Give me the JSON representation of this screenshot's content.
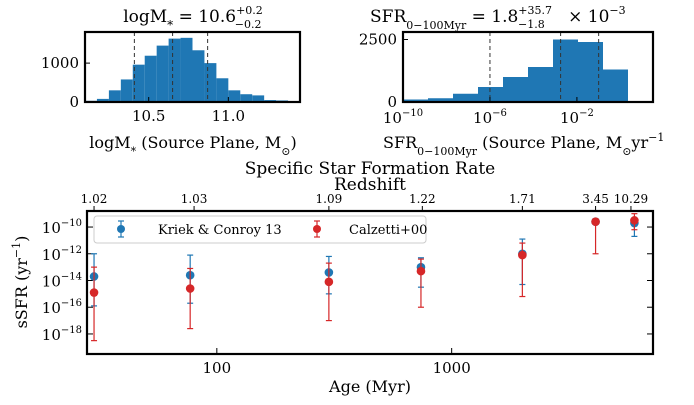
{
  "chart_data": [
    {
      "type": "bar",
      "title": "logM* = 10.6 (+0.2, -0.2)",
      "title_parts": {
        "main": "logM",
        "sub": "*",
        "eq": " = 10.6",
        "sup": "+0.2",
        "sub2": "−0.2"
      },
      "xlabel": "logM* (Source Plane, M⊙)",
      "xlabel_parts": {
        "a": "logM",
        "b": "*",
        "c": " (Source Plane, M",
        "d": "⊙",
        "e": ")"
      },
      "ylabel": "",
      "xlim": [
        10.1,
        11.45
      ],
      "ylim": [
        0,
        1800
      ],
      "xticks": [
        10.5,
        11.0
      ],
      "xtick_labels": [
        "10.5",
        "11.0"
      ],
      "yticks": [
        0,
        1000
      ],
      "ytick_labels": [
        "0",
        "1000"
      ],
      "bin_edges": [
        10.1,
        10.175,
        10.25,
        10.325,
        10.4,
        10.475,
        10.55,
        10.625,
        10.7,
        10.775,
        10.85,
        10.925,
        11.0,
        11.075,
        11.15,
        11.225,
        11.3,
        11.375,
        11.45
      ],
      "values": [
        30,
        80,
        300,
        580,
        960,
        1190,
        1450,
        1630,
        1650,
        1330,
        1000,
        610,
        300,
        200,
        170,
        50,
        40,
        20
      ],
      "percentile_lines": [
        10.41,
        10.65,
        10.87
      ],
      "color": "#1f77b4"
    },
    {
      "type": "bar",
      "title": "SFR0−100Myr = 1.8 (+35.7, −1.8) × 10^−3",
      "title_parts": {
        "main": "SFR",
        "sub": "0−100Myr",
        "eq": " = 1.8",
        "sup": "+35.7",
        "sub2": "−1.8",
        "tail": " × 10",
        "exp": "−3"
      },
      "xlabel": "SFR0−100Myr (Source Plane, M⊙yr−1)",
      "xlabel_parts": {
        "a": "SFR",
        "b": "0−100Myr",
        "c": " (Source Plane, M",
        "d": "⊙",
        "e": "yr",
        "f": "−1"
      },
      "x_scale": "log",
      "xlim_log10": [
        -10,
        1.5
      ],
      "ylim": [
        0,
        2800
      ],
      "xticks_log10": [
        -10,
        -6,
        -2
      ],
      "xtick_labels": [
        {
          "base": "10",
          "exp": "−10"
        },
        {
          "base": "10",
          "exp": "−6"
        },
        {
          "base": "10",
          "exp": "−2"
        }
      ],
      "yticks": [
        0,
        2500
      ],
      "ytick_labels": [
        "0",
        "2500"
      ],
      "bin_edges_log10": [
        -10,
        -8.85,
        -7.7,
        -6.55,
        -5.4,
        -4.25,
        -3.1,
        -1.95,
        -0.8,
        0.35
      ],
      "values": [
        100,
        150,
        330,
        600,
        1000,
        1400,
        2500,
        2400,
        1300
      ],
      "percentile_lines_log10": [
        -6.0,
        -2.75,
        -1.0
      ],
      "color": "#1f77b4"
    },
    {
      "type": "scatter",
      "title": "Specific Star Formation Rate",
      "xlabel": "Age (Myr)",
      "ylabel": "sSFR (yr−1)",
      "ylabel_parts": {
        "a": "sSFR (yr",
        "b": "−1",
        "c": ")"
      },
      "x_scale": "log",
      "y_scale": "log",
      "xlim": [
        28,
        7200
      ],
      "ylim_log10": [
        -19.5,
        -8.8
      ],
      "xticks": [
        100,
        1000
      ],
      "xtick_labels": [
        "100",
        "1000"
      ],
      "yticks_log10": [
        -18,
        -16,
        -14,
        -12,
        -10
      ],
      "ytick_labels": [
        {
          "base": "10",
          "exp": "−18"
        },
        {
          "base": "10",
          "exp": "−16"
        },
        {
          "base": "10",
          "exp": "−14"
        },
        {
          "base": "10",
          "exp": "−12"
        },
        {
          "base": "10",
          "exp": "−10"
        }
      ],
      "top_axis_label": "Redshift",
      "top_ticks": [
        {
          "age": 30,
          "label": "1.02"
        },
        {
          "age": 80,
          "label": "1.03"
        },
        {
          "age": 300,
          "label": "1.09"
        },
        {
          "age": 750,
          "label": "1.22"
        },
        {
          "age": 2000,
          "label": "1.71"
        },
        {
          "age": 4100,
          "label": "3.45"
        },
        {
          "age": 5800,
          "label": "10.29"
        }
      ],
      "legend_position": "upper-left",
      "series": [
        {
          "name": "Kriek & Conroy 13",
          "color": "#1f77b4",
          "points": [
            {
              "x": 30,
              "y_log10": -13.7,
              "lo_log10": -15.9,
              "hi_log10": -12.0
            },
            {
              "x": 77,
              "y_log10": -13.6,
              "lo_log10": -15.7,
              "hi_log10": -12.1
            },
            {
              "x": 300,
              "y_log10": -13.4,
              "lo_log10": -15.0,
              "hi_log10": -12.2
            },
            {
              "x": 740,
              "y_log10": -13.0,
              "lo_log10": -14.5,
              "hi_log10": -12.3
            },
            {
              "x": 2000,
              "y_log10": -12.0,
              "lo_log10": -14.3,
              "hi_log10": -10.9
            },
            {
              "x": 4100,
              "y_log10": -9.6,
              "lo_log10": -9.8,
              "hi_log10": -9.5
            },
            {
              "x": 6000,
              "y_log10": -9.7,
              "lo_log10": -10.7,
              "hi_log10": -9.5
            }
          ]
        },
        {
          "name": "Calzetti+00",
          "color": "#d62728",
          "points": [
            {
              "x": 30,
              "y_log10": -14.9,
              "lo_log10": -18.5,
              "hi_log10": -13.0
            },
            {
              "x": 77,
              "y_log10": -14.6,
              "lo_log10": -17.6,
              "hi_log10": -13.1
            },
            {
              "x": 300,
              "y_log10": -14.1,
              "lo_log10": -17.0,
              "hi_log10": -12.7
            },
            {
              "x": 740,
              "y_log10": -13.3,
              "lo_log10": -16.0,
              "hi_log10": -12.4
            },
            {
              "x": 2000,
              "y_log10": -12.1,
              "lo_log10": -15.2,
              "hi_log10": -11.2
            },
            {
              "x": 4100,
              "y_log10": -9.6,
              "lo_log10": -12.0,
              "hi_log10": -9.4
            },
            {
              "x": 6000,
              "y_log10": -9.5,
              "lo_log10": -10.2,
              "hi_log10": -9.0
            }
          ]
        }
      ]
    }
  ]
}
